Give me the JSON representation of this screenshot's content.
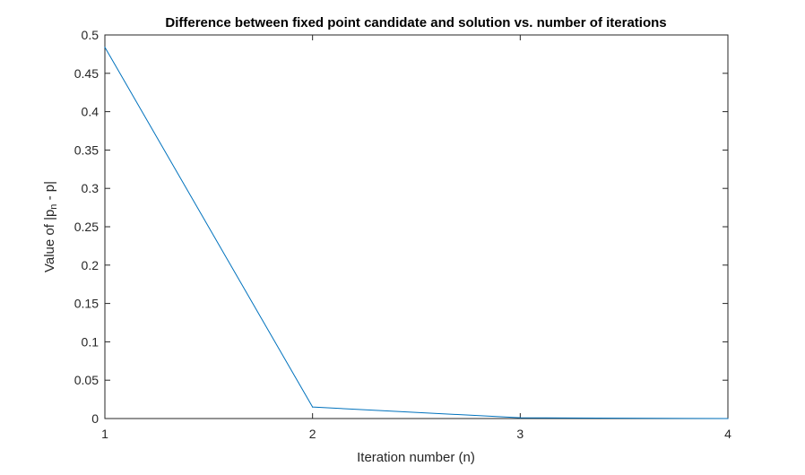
{
  "chart_data": {
    "type": "line",
    "title": "Difference between fixed point candidate and solution vs. number of iterations",
    "xlabel": "Iteration number (n)",
    "ylabel": {
      "prefix": "Value of |p",
      "subscript": "n",
      "suffix": " - p|"
    },
    "xlim": [
      1,
      4
    ],
    "ylim": [
      0,
      0.5
    ],
    "x_ticks": [
      1,
      2,
      3,
      4
    ],
    "x_tick_labels": [
      "1",
      "2",
      "3",
      "4"
    ],
    "y_ticks": [
      0,
      0.05,
      0.1,
      0.15,
      0.2,
      0.25,
      0.3,
      0.35,
      0.4,
      0.45,
      0.5
    ],
    "y_tick_labels": [
      "0",
      "0.05",
      "0.1",
      "0.15",
      "0.2",
      "0.25",
      "0.3",
      "0.35",
      "0.4",
      "0.45",
      "0.5"
    ],
    "grid": false,
    "box": true,
    "series": [
      {
        "x": [
          1,
          2,
          3,
          4
        ],
        "y": [
          0.484,
          0.015,
          0.001,
          0.0
        ],
        "color": "#0072BD"
      }
    ]
  }
}
